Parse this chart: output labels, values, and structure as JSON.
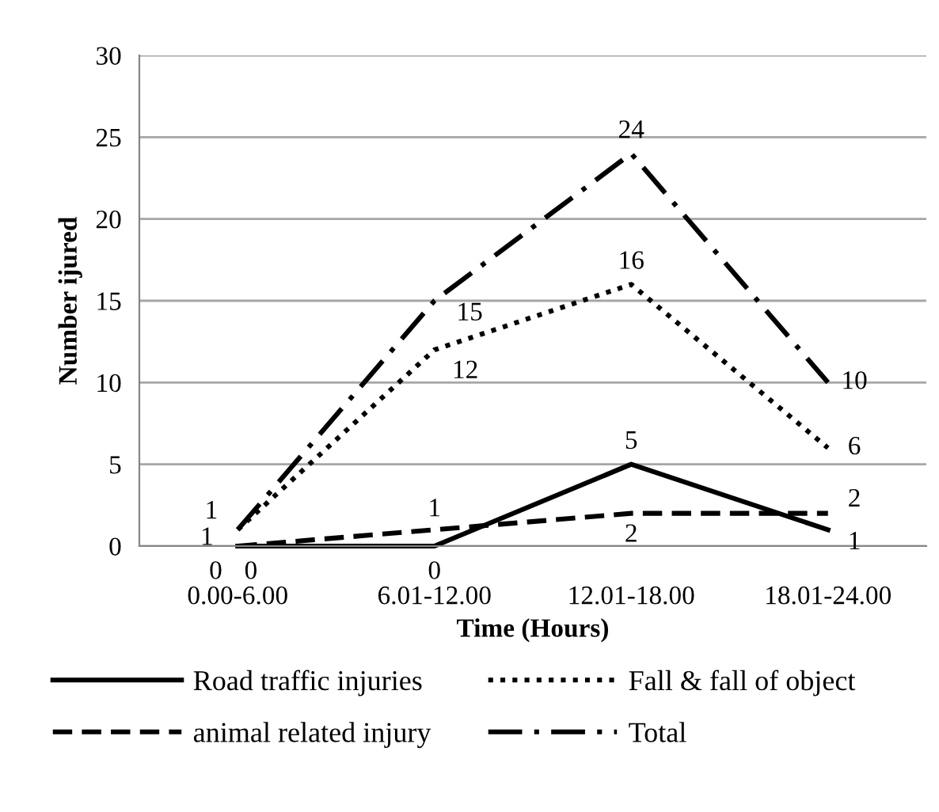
{
  "chart_data": {
    "type": "line",
    "xlabel": "Time (Hours)",
    "ylabel": "Number ijured",
    "categories": [
      "0.00-6.00",
      "6.01-12.00",
      "12.01-18.00",
      "18.01-24.00"
    ],
    "series": [
      {
        "name": "Road traffic injuries",
        "color": "#000000",
        "line_style": "solid",
        "values": [
          0,
          0,
          5,
          1
        ]
      },
      {
        "name": "Fall & fall of object",
        "color": "#000000",
        "line_style": "dotted",
        "values": [
          1,
          12,
          16,
          6
        ]
      },
      {
        "name": "animal related injury",
        "color": "#000000",
        "line_style": "dashed",
        "values": [
          0,
          1,
          2,
          2
        ]
      },
      {
        "name": "Total",
        "color": "#000000",
        "line_style": "dashdot",
        "values": [
          1,
          15,
          24,
          10
        ]
      }
    ],
    "ylim": [
      0,
      30
    ],
    "yticks": [
      0,
      5,
      10,
      15,
      20,
      25,
      30
    ],
    "grid": "y",
    "legend": "bottom",
    "data_labels": true,
    "marker": "none"
  }
}
